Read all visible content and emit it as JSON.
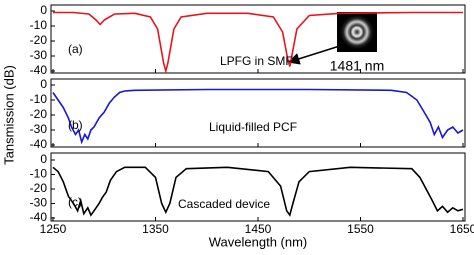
{
  "chart_data": [
    {
      "type": "line",
      "panel_label": "(a)",
      "annotation": "LPFG in SMF",
      "inset_label": "1481 nm",
      "xlim": [
        1250,
        1650
      ],
      "ylim": [
        -40,
        0
      ],
      "yticks": [
        0,
        -10,
        -20,
        -30,
        -40
      ],
      "x": [
        1250,
        1270,
        1285,
        1292,
        1296,
        1300,
        1310,
        1330,
        1345,
        1352,
        1358,
        1360,
        1362,
        1368,
        1375,
        1400,
        1440,
        1465,
        1474,
        1479,
        1481,
        1483,
        1488,
        1500,
        1530,
        1600,
        1650
      ],
      "series": [
        {
          "color": "#e8141b",
          "values": [
            -1,
            -1,
            -2,
            -6,
            -9,
            -6,
            -2,
            -1.5,
            -4,
            -12,
            -35,
            -40,
            -35,
            -12,
            -4,
            -1.5,
            -1.5,
            -4,
            -14,
            -32,
            -37,
            -30,
            -12,
            -3,
            -1.5,
            -1,
            -1
          ]
        }
      ]
    },
    {
      "type": "line",
      "panel_label": "(b)",
      "annotation": "Liquid-filled PCF",
      "ylabel": "Tansmission (dB)",
      "xlim": [
        1250,
        1650
      ],
      "ylim": [
        -40,
        0
      ],
      "yticks": [
        0,
        -10,
        -20,
        -30,
        -40
      ],
      "x": [
        1250,
        1255,
        1260,
        1265,
        1268,
        1272,
        1275,
        1278,
        1281,
        1284,
        1287,
        1290,
        1295,
        1300,
        1305,
        1310,
        1315,
        1320,
        1330,
        1400,
        1500,
        1580,
        1595,
        1605,
        1612,
        1618,
        1622,
        1626,
        1630,
        1635,
        1640,
        1645,
        1650
      ],
      "series": [
        {
          "color": "#1717d6",
          "values": [
            -5,
            -10,
            -15,
            -22,
            -28,
            -33,
            -30,
            -38,
            -33,
            -36,
            -30,
            -28,
            -22,
            -18,
            -12,
            -8,
            -5,
            -4,
            -3.5,
            -3,
            -3,
            -3.5,
            -5,
            -10,
            -18,
            -25,
            -33,
            -28,
            -35,
            -30,
            -28,
            -32,
            -30
          ]
        }
      ]
    },
    {
      "type": "line",
      "panel_label": "(c)",
      "annotation": "Cascaded device",
      "xlabel": "Wavelength (nm)",
      "xlim": [
        1250,
        1650
      ],
      "xticks": [
        1250,
        1350,
        1450,
        1550,
        1650
      ],
      "ylim": [
        -40,
        0
      ],
      "yticks": [
        0,
        -10,
        -20,
        -30,
        -40
      ],
      "x": [
        1250,
        1255,
        1260,
        1265,
        1270,
        1274,
        1277,
        1280,
        1284,
        1287,
        1290,
        1295,
        1298,
        1302,
        1306,
        1312,
        1320,
        1340,
        1350,
        1356,
        1360,
        1364,
        1370,
        1380,
        1420,
        1460,
        1472,
        1478,
        1481,
        1484,
        1490,
        1500,
        1540,
        1600,
        1608,
        1614,
        1620,
        1625,
        1630,
        1635,
        1640,
        1645,
        1650
      ],
      "series": [
        {
          "color": "#000000",
          "values": [
            -5,
            -8,
            -15,
            -25,
            -30,
            -35,
            -28,
            -37,
            -33,
            -38,
            -35,
            -30,
            -26,
            -22,
            -14,
            -8,
            -5,
            -5,
            -12,
            -30,
            -36,
            -30,
            -12,
            -6,
            -5,
            -8,
            -18,
            -35,
            -38,
            -30,
            -15,
            -8,
            -5,
            -6,
            -12,
            -20,
            -28,
            -35,
            -32,
            -36,
            -33,
            -35,
            -34
          ]
        }
      ]
    }
  ]
}
